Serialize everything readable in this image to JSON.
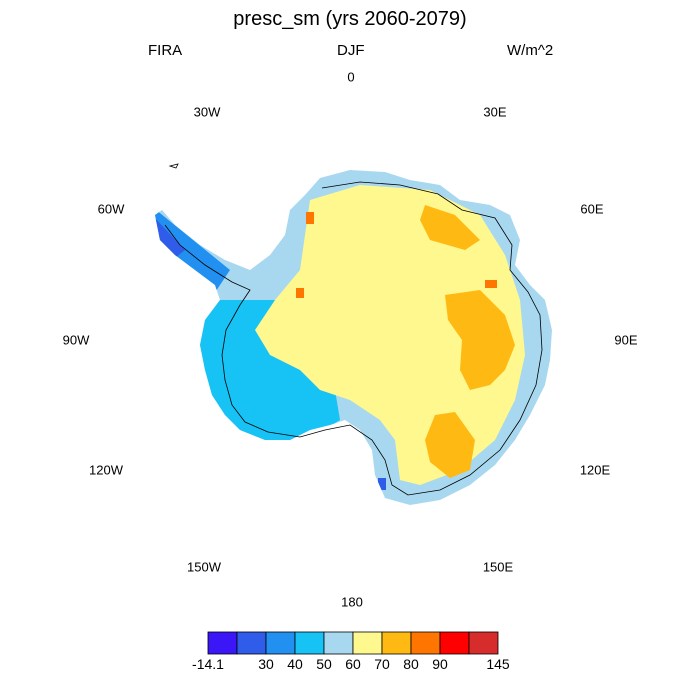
{
  "title": "presc_sm (yrs 2060-2079)",
  "left_label": "FIRA",
  "center_label": "DJF",
  "right_label": "W/m^2",
  "longitude_labels": {
    "top": "0",
    "upper_left": "30W",
    "upper_right": "30E",
    "mid_upper_left": "60W",
    "mid_upper_right": "60E",
    "left": "90W",
    "right": "90E",
    "mid_lower_left": "120W",
    "mid_lower_right": "120E",
    "lower_left": "150W",
    "lower_right": "150E",
    "bottom": "180"
  },
  "colorbar": {
    "colors": [
      "#3b16f7",
      "#2f5ce9",
      "#2290f0",
      "#17c2f5",
      "#a8d8f0",
      "#fff88f",
      "#feba12",
      "#fe7500",
      "#fe0000",
      "#d62c2c"
    ],
    "boundary_labels": [
      "-14.1",
      "30",
      "40",
      "50",
      "60",
      "70",
      "80",
      "90",
      "145"
    ]
  },
  "chart_data": {
    "type": "heatmap",
    "projection": "south-polar-stereographic",
    "region": "Antarctica",
    "variable": "presc_sm",
    "period": "yrs 2060-2079",
    "season": "DJF",
    "units": "W/m^2",
    "levels": [
      -14.1,
      30,
      40,
      50,
      60,
      70,
      80,
      90,
      145
    ],
    "regions": [
      {
        "area": "East Antarctic plateau interior",
        "range": "60-70"
      },
      {
        "area": "Dronning Maud Land patch (near 30E-45E)",
        "range": "70-80"
      },
      {
        "area": "Wilkes Land / Amery sector (near 80E-100E)",
        "range": "70-80"
      },
      {
        "area": "Sector near 135E-150E",
        "range": "70-80"
      },
      {
        "area": "Coastal fringe",
        "range": "50-60"
      },
      {
        "area": "West Antarctica / Ross & Ronne ice shelves",
        "range": "40-60"
      },
      {
        "area": "Antarctic Peninsula",
        "range": "-14.1-40"
      },
      {
        "area": "Isolated coastal hotspots (near 60E, 45W)",
        "range": "80-90"
      }
    ]
  }
}
